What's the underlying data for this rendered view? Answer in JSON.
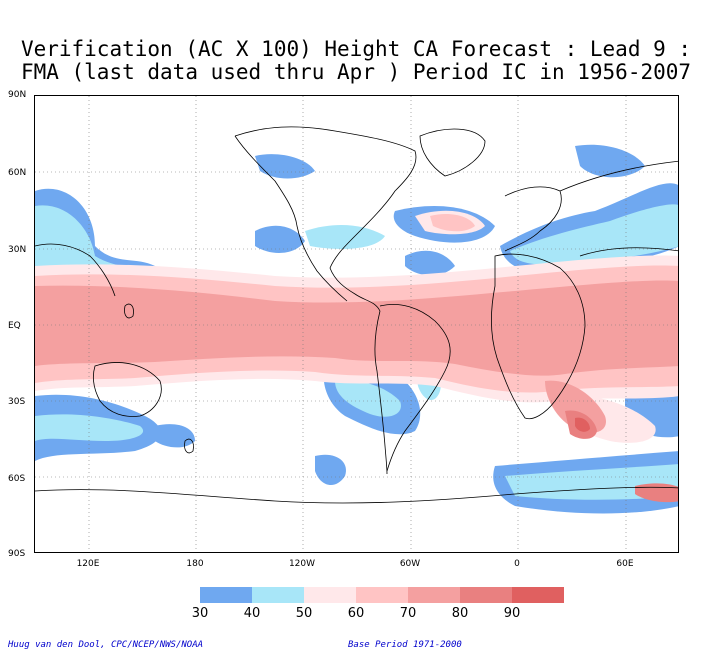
{
  "title": {
    "line1": "Verification (AC X 100) Height CA Forecast : Lead 9 :",
    "line2": "FMA (last data used thru Apr ) Period IC in 1956-2007"
  },
  "map": {
    "lat_labels": [
      "90N",
      "60N",
      "30N",
      "EQ",
      "30S",
      "60S",
      "90S"
    ],
    "lon_labels": [
      "120E",
      "180",
      "120W",
      "60W",
      "0",
      "60E"
    ]
  },
  "colorbar": {
    "levels": [
      "30",
      "40",
      "50",
      "60",
      "70",
      "80",
      "90"
    ],
    "colors": [
      "#6fa8f0",
      "#a8e6f8",
      "#ffe8ea",
      "#ffc4c4",
      "#f4a0a0",
      "#e98080",
      "#e06060"
    ]
  },
  "footer": {
    "left": "Huug van den Dool, CPC/NCEP/NWS/NOAA",
    "right": "Base Period 1971-2000"
  },
  "colors": {
    "blue": "#6fa8f0",
    "cyan": "#a8e6f8",
    "pink_light": "#ffe8ea",
    "pink": "#ffc4c4",
    "red_light": "#f4a0a0",
    "red": "#e98080",
    "red_dark": "#e06060"
  }
}
